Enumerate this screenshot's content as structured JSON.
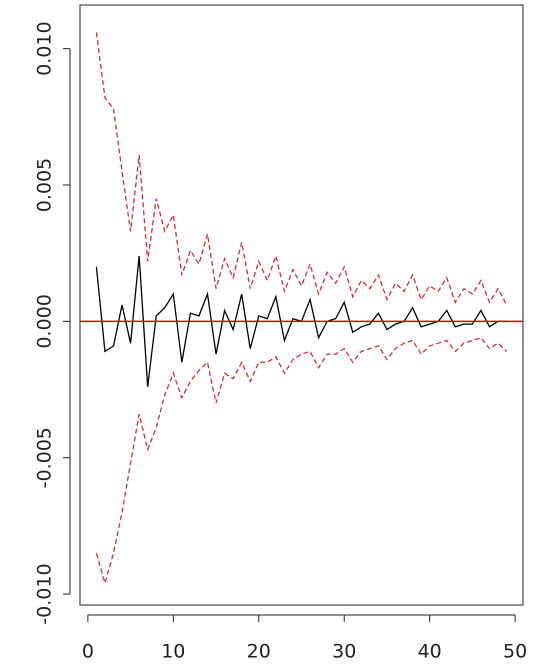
{
  "chart_data": {
    "type": "line",
    "x": [
      1,
      2,
      3,
      4,
      5,
      6,
      7,
      8,
      9,
      10,
      11,
      12,
      13,
      14,
      15,
      16,
      17,
      18,
      19,
      20,
      21,
      22,
      23,
      24,
      25,
      26,
      27,
      28,
      29,
      30,
      31,
      32,
      33,
      34,
      35,
      36,
      37,
      38,
      39,
      40,
      41,
      42,
      43,
      44,
      45,
      46,
      47,
      48,
      49
    ],
    "series": [
      {
        "color": "#000000",
        "dashed": false,
        "values": [
          0.002,
          -0.0011,
          -0.0009,
          0.0006,
          -0.0008,
          0.0024,
          -0.0024,
          0.0002,
          0.0005,
          0.001,
          -0.0015,
          0.0003,
          0.0002,
          0.001,
          -0.0012,
          0.0004,
          -0.0003,
          0.001,
          -0.001,
          0.0002,
          0.0001,
          0.0009,
          -0.0007,
          0.0001,
          0,
          0.0008,
          -0.0006,
          0,
          0.0001,
          0.0007,
          -0.0004,
          -0.0002,
          -0.0001,
          0.0003,
          -0.0003,
          -0.0001,
          0,
          0.0005,
          -0.0002,
          -0.0001,
          0,
          0.0004,
          -0.0002,
          -0.0001,
          -0.0001,
          0.0004,
          -0.0002,
          0,
          0
        ]
      },
      {
        "color": "#d0312d",
        "dashed": true,
        "values": [
          0.0106,
          0.0082,
          0.0078,
          0.0055,
          0.0033,
          0.0061,
          0.0022,
          0.0045,
          0.0033,
          0.0039,
          0.0017,
          0.0026,
          0.0021,
          0.0032,
          0.0012,
          0.0023,
          0.0016,
          0.0029,
          0.0012,
          0.0022,
          0.0015,
          0.0024,
          0.0011,
          0.0019,
          0.0013,
          0.0021,
          0.001,
          0.0018,
          0.0014,
          0.002,
          0.0009,
          0.0015,
          0.0012,
          0.0017,
          0.0008,
          0.0014,
          0.0011,
          0.0017,
          0.0008,
          0.0013,
          0.0011,
          0.0016,
          0.0007,
          0.0012,
          0.001,
          0.0015,
          0.0007,
          0.0012,
          0.0006
        ]
      },
      {
        "color": "#d0312d",
        "dashed": true,
        "values": [
          -0.0085,
          -0.0096,
          -0.0085,
          -0.007,
          -0.0052,
          -0.0034,
          -0.0047,
          -0.0039,
          -0.0027,
          -0.0019,
          -0.0028,
          -0.0022,
          -0.0018,
          -0.0015,
          -0.003,
          -0.0019,
          -0.0021,
          -0.0015,
          -0.0022,
          -0.0015,
          -0.0015,
          -0.0013,
          -0.0019,
          -0.0014,
          -0.0012,
          -0.0011,
          -0.0017,
          -0.0012,
          -0.0012,
          -0.001,
          -0.0015,
          -0.0011,
          -0.001,
          -0.0009,
          -0.0014,
          -0.001,
          -0.0008,
          -0.0007,
          -0.0012,
          -0.0009,
          -0.0008,
          -0.0007,
          -0.0011,
          -0.0008,
          -0.0007,
          -0.0006,
          -0.001,
          -0.0008,
          -0.0011
        ]
      }
    ],
    "hline": 0,
    "hline_color": "#cc0000",
    "xlim": [
      -0.92,
      50.92
    ],
    "xticks": [
      0,
      10,
      20,
      30,
      40,
      50
    ],
    "ylim": [
      -0.0104,
      0.0116
    ],
    "yticks": [
      {
        "value": -0.01,
        "label": "-0.010"
      },
      {
        "value": -0.005,
        "label": "-0.005"
      },
      {
        "value": 0,
        "label": "0.000"
      },
      {
        "value": 0.005,
        "label": "0.005"
      },
      {
        "value": 0.01,
        "label": "0.010"
      }
    ]
  }
}
